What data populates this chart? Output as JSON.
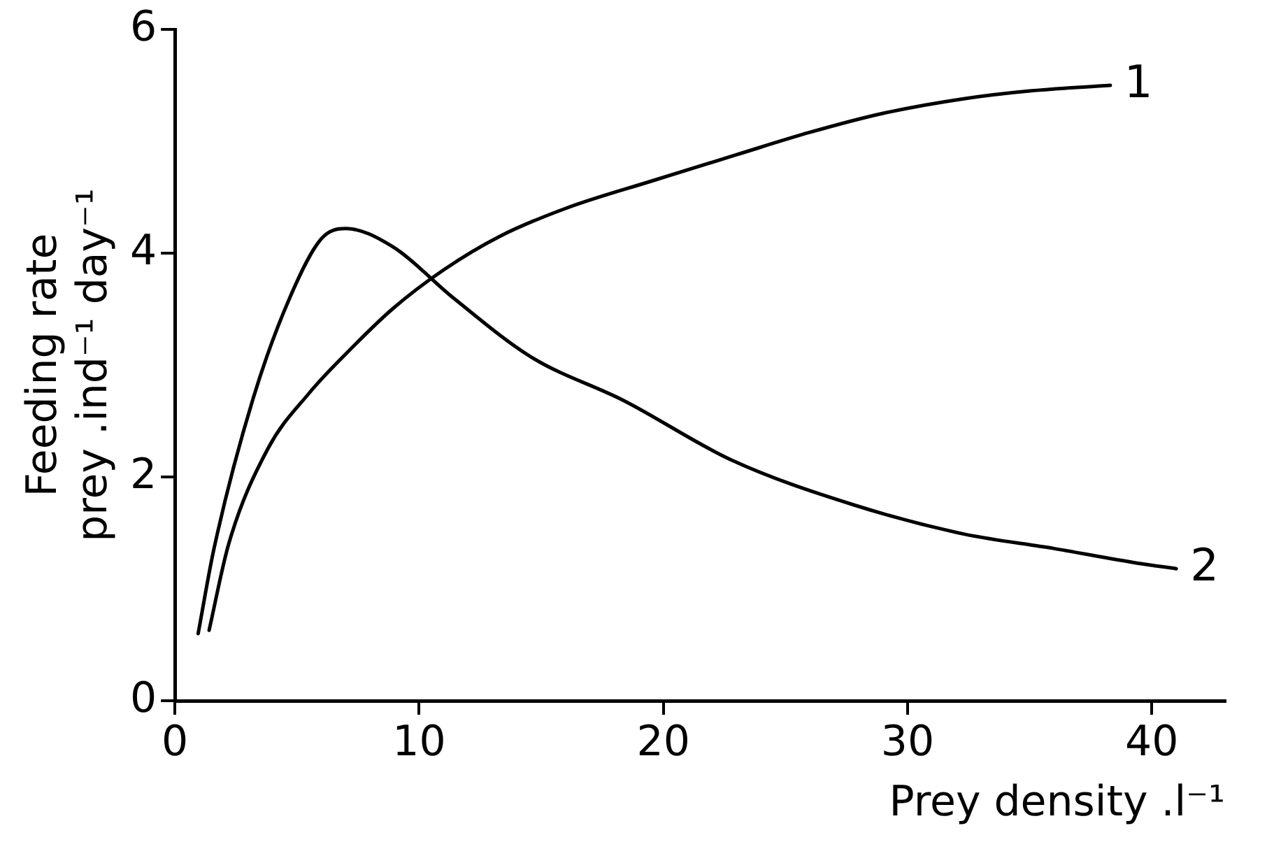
{
  "chart_data": {
    "type": "line",
    "xlabel": "Prey density .l⁻¹",
    "ylabel": "Feeding rate\nprey .ind⁻¹ day⁻¹",
    "xlim": [
      0,
      43
    ],
    "xticks": [
      0,
      10,
      20,
      30,
      40
    ],
    "ylim": [
      0,
      6
    ],
    "yticks": [
      0,
      2,
      4,
      6
    ],
    "grid": false,
    "legend": false,
    "marker": "none",
    "line_style": "solid",
    "series": [
      {
        "name": "1",
        "color": "#000000",
        "x": [
          1.4,
          2.2,
          3.8,
          5.5,
          7,
          8.9,
          11,
          13.3,
          16,
          19.6,
          23,
          26,
          29,
          32.3,
          35,
          38.3
        ],
        "values": [
          0.63,
          1.4,
          2.25,
          2.75,
          3.1,
          3.5,
          3.85,
          4.15,
          4.4,
          4.65,
          4.88,
          5.08,
          5.25,
          5.38,
          5.45,
          5.5
        ]
      },
      {
        "name": "2",
        "color": "#000000",
        "x": [
          0.95,
          1.6,
          3.2,
          4.7,
          6,
          7,
          8.9,
          11.4,
          14.6,
          18.4,
          22.8,
          27.8,
          32.3,
          36,
          39.4,
          41
        ],
        "values": [
          0.6,
          1.36,
          2.7,
          3.6,
          4.13,
          4.22,
          4.06,
          3.6,
          3.07,
          2.68,
          2.15,
          1.75,
          1.49,
          1.36,
          1.23,
          1.18
        ]
      }
    ]
  }
}
